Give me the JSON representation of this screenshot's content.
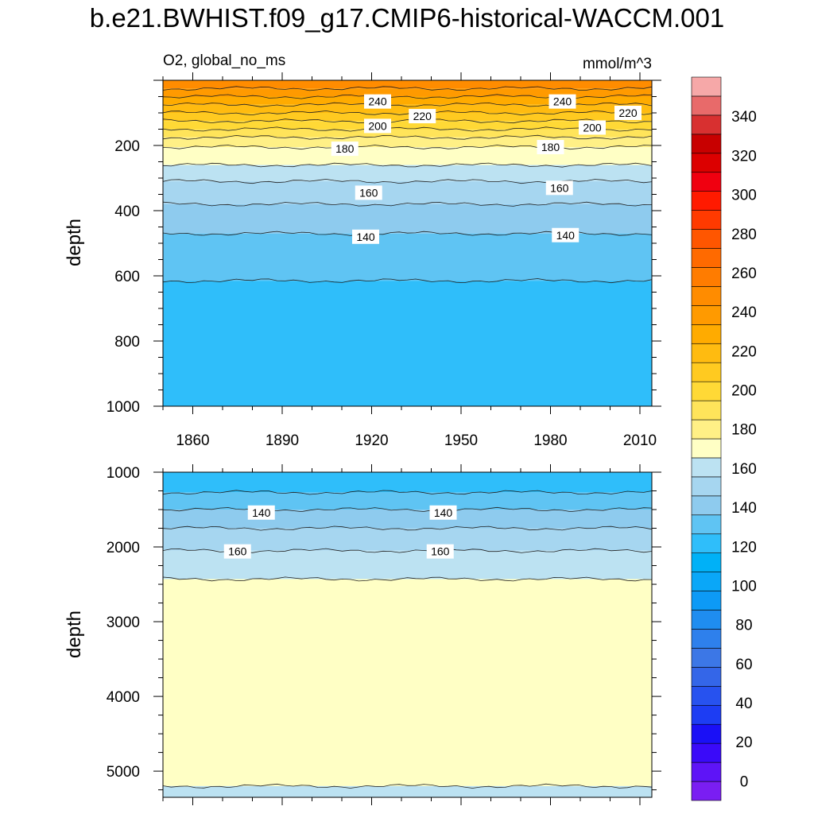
{
  "title": "b.e21.BWHIST.f09_g17.CMIP6-historical-WACCM.001",
  "chart_data": [
    {
      "type": "heatmap",
      "panel": "upper",
      "left_label": "O2, global_no_ms",
      "right_label": "mmol/m^3",
      "ylabel": "depth",
      "xlim": [
        1850,
        2014
      ],
      "ylim": [
        1000,
        0
      ],
      "y_reversed": true,
      "x_ticks": [
        "1860",
        "1890",
        "1920",
        "1950",
        "1980",
        "2010"
      ],
      "y_ticks": [
        "200",
        "400",
        "600",
        "800",
        "1000"
      ],
      "filled_bands": [
        {
          "top": 0,
          "bottom": 25,
          "color": "#ff8c00"
        },
        {
          "top": 25,
          "bottom": 50,
          "color": "#ff9a00"
        },
        {
          "top": 50,
          "bottom": 75,
          "color": "#ffab00"
        },
        {
          "top": 75,
          "bottom": 100,
          "color": "#ffbb10"
        },
        {
          "top": 100,
          "bottom": 125,
          "color": "#ffca20"
        },
        {
          "top": 125,
          "bottom": 150,
          "color": "#ffd936"
        },
        {
          "top": 150,
          "bottom": 175,
          "color": "#ffe45a"
        },
        {
          "top": 175,
          "bottom": 205,
          "color": "#fff086"
        },
        {
          "top": 205,
          "bottom": 260,
          "color": "#ffffc5"
        },
        {
          "top": 260,
          "bottom": 310,
          "color": "#bce2f2"
        },
        {
          "top": 310,
          "bottom": 380,
          "color": "#a6d6f0"
        },
        {
          "top": 380,
          "bottom": 470,
          "color": "#8ecbee"
        },
        {
          "top": 470,
          "bottom": 615,
          "color": "#5fc4f3"
        },
        {
          "top": 615,
          "bottom": 1000,
          "color": "#2fbefa"
        }
      ],
      "contour_labels": [
        {
          "text": "240",
          "x": 1922,
          "y": 65
        },
        {
          "text": "240",
          "x": 1984,
          "y": 65
        },
        {
          "text": "220",
          "x": 1937,
          "y": 110
        },
        {
          "text": "220",
          "x": 2006,
          "y": 100
        },
        {
          "text": "200",
          "x": 1922,
          "y": 140
        },
        {
          "text": "200",
          "x": 1994,
          "y": 145
        },
        {
          "text": "180",
          "x": 1911,
          "y": 210
        },
        {
          "text": "180",
          "x": 1980,
          "y": 205
        },
        {
          "text": "160",
          "x": 1919,
          "y": 345
        },
        {
          "text": "160",
          "x": 1983,
          "y": 330
        },
        {
          "text": "140",
          "x": 1918,
          "y": 480
        },
        {
          "text": "140",
          "x": 1985,
          "y": 475
        }
      ]
    },
    {
      "type": "heatmap",
      "panel": "lower",
      "ylabel": "depth",
      "xlim": [
        1850,
        2014
      ],
      "ylim": [
        5350,
        1000
      ],
      "y_reversed": true,
      "y_ticks": [
        "1000",
        "2000",
        "3000",
        "4000",
        "5000"
      ],
      "filled_bands": [
        {
          "top": 1000,
          "bottom": 1270,
          "color": "#2fbefa"
        },
        {
          "top": 1270,
          "bottom": 1500,
          "color": "#5fc4f3"
        },
        {
          "top": 1500,
          "bottom": 1750,
          "color": "#8ecbee"
        },
        {
          "top": 1750,
          "bottom": 2050,
          "color": "#a6d6f0"
        },
        {
          "top": 2050,
          "bottom": 2430,
          "color": "#bce2f2"
        },
        {
          "top": 2430,
          "bottom": 5200,
          "color": "#ffffc5"
        },
        {
          "top": 5200,
          "bottom": 5350,
          "color": "#bce2f2"
        }
      ],
      "contour_labels": [
        {
          "text": "140",
          "x": 1883,
          "y": 1540
        },
        {
          "text": "140",
          "x": 1944,
          "y": 1540
        },
        {
          "text": "160",
          "x": 1875,
          "y": 2060
        },
        {
          "text": "160",
          "x": 1943,
          "y": 2060
        }
      ]
    }
  ],
  "colorbar": {
    "min": -10,
    "max": 360,
    "tick_labels": [
      "0",
      "20",
      "40",
      "60",
      "80",
      "100",
      "120",
      "140",
      "160",
      "180",
      "200",
      "220",
      "240",
      "260",
      "280",
      "300",
      "320",
      "340"
    ],
    "colors": [
      "#7a1ef2",
      "#5e14f7",
      "#3a0af9",
      "#1a10f6",
      "#1d3df3",
      "#2752ef",
      "#3466e8",
      "#3c77e6",
      "#2e80ec",
      "#1f8df0",
      "#0d9af6",
      "#0aa7f8",
      "#00b1f7",
      "#2fbefa",
      "#5fc4f3",
      "#8ecbee",
      "#a6d6f0",
      "#bce2f2",
      "#ffffc5",
      "#fff086",
      "#ffe45a",
      "#ffd936",
      "#ffca20",
      "#ffbb10",
      "#ffab00",
      "#ff9a00",
      "#ff8c00",
      "#ff7c00",
      "#ff6a00",
      "#ff5600",
      "#ff3a00",
      "#ff1a00",
      "#f00010",
      "#dc0000",
      "#c80000",
      "#d83030",
      "#e86a6a",
      "#f6a8a8"
    ]
  }
}
